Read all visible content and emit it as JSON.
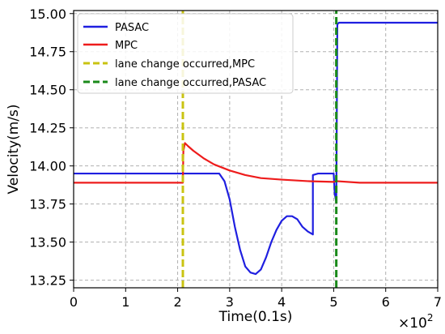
{
  "chart_data": {
    "type": "line",
    "xlabel": "Time(0.1s)",
    "ylabel": "Velocity(m/s)",
    "x_multiplier_label": "×10",
    "x_multiplier_exp": "2",
    "xlim": [
      0,
      7
    ],
    "ylim": [
      13.2,
      15.02
    ],
    "xticks": [
      0,
      1,
      2,
      3,
      4,
      5,
      6,
      7
    ],
    "xtick_labels": [
      "0",
      "1",
      "2",
      "3",
      "4",
      "5",
      "6",
      "7"
    ],
    "yticks": [
      13.25,
      13.5,
      13.75,
      14.0,
      14.25,
      14.5,
      14.75,
      15.0
    ],
    "ytick_labels": [
      "13.25",
      "13.50",
      "13.75",
      "14.00",
      "14.25",
      "14.50",
      "14.75",
      "15.00"
    ],
    "grid": true,
    "legend_position": "top-left",
    "series": [
      {
        "name": "PASAC",
        "color": "#1f1fe0",
        "style": "solid",
        "x": [
          0,
          1,
          2,
          2.8,
          2.9,
          3.0,
          3.1,
          3.2,
          3.3,
          3.4,
          3.5,
          3.6,
          3.7,
          3.8,
          3.9,
          4.0,
          4.1,
          4.2,
          4.3,
          4.4,
          4.5,
          4.6,
          4.6,
          4.7,
          4.8,
          4.9,
          5.0,
          5.02,
          5.05,
          5.07,
          5.1,
          6,
          7
        ],
        "values": [
          13.95,
          13.95,
          13.95,
          13.95,
          13.9,
          13.78,
          13.6,
          13.45,
          13.34,
          13.3,
          13.29,
          13.32,
          13.4,
          13.5,
          13.58,
          13.64,
          13.67,
          13.67,
          13.65,
          13.6,
          13.57,
          13.55,
          13.94,
          13.95,
          13.95,
          13.95,
          13.95,
          13.82,
          13.76,
          14.93,
          14.94,
          14.94,
          14.94
        ]
      },
      {
        "name": "MPC",
        "color": "#ee1c1c",
        "style": "solid",
        "x": [
          0,
          1,
          2,
          2.1,
          2.11,
          2.14,
          2.2,
          2.3,
          2.5,
          2.7,
          3.0,
          3.3,
          3.6,
          4.0,
          4.5,
          5.0,
          5.05,
          5.5,
          6,
          7
        ],
        "values": [
          13.89,
          13.89,
          13.89,
          13.89,
          14.1,
          14.15,
          14.13,
          14.1,
          14.05,
          14.01,
          13.97,
          13.94,
          13.92,
          13.91,
          13.9,
          13.895,
          13.9,
          13.89,
          13.89,
          13.89
        ]
      },
      {
        "name": "lane change occurred,MPC",
        "color": "#c9c312",
        "style": "dashed",
        "x": [
          2.1,
          2.1
        ],
        "values": [
          13.2,
          15.02
        ]
      },
      {
        "name": "lane change occurred,PASAC",
        "color": "#1a8a1a",
        "style": "dashed",
        "x": [
          5.05,
          5.05
        ],
        "values": [
          13.2,
          15.02
        ]
      }
    ]
  }
}
